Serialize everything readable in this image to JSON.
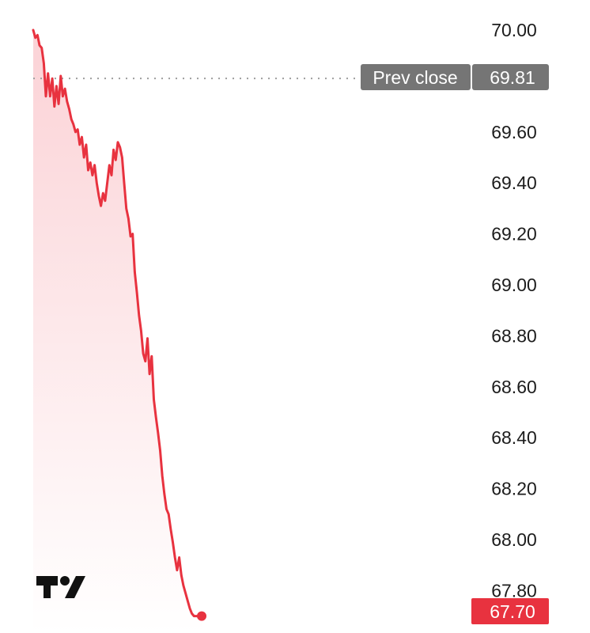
{
  "chart_data": {
    "type": "area",
    "ylim": [
      67.7,
      70.0
    ],
    "y_ticks": [
      "70.00",
      "69.60",
      "69.40",
      "69.20",
      "69.00",
      "68.80",
      "68.60",
      "68.40",
      "68.20",
      "68.00",
      "67.80"
    ],
    "y_tick_values": [
      70.0,
      69.6,
      69.4,
      69.2,
      69.0,
      68.8,
      68.6,
      68.4,
      68.2,
      68.0,
      67.8
    ],
    "x": [
      0,
      1,
      2,
      3,
      4,
      5,
      6,
      7,
      8,
      9,
      10,
      11,
      12,
      13,
      14,
      15,
      16,
      17,
      18,
      19,
      20,
      21,
      22,
      23,
      24,
      25,
      26,
      27,
      28,
      29,
      30,
      31,
      32,
      33,
      34,
      35,
      36,
      37,
      38,
      39,
      40,
      41,
      42,
      43,
      44,
      45,
      46,
      47,
      48,
      49,
      50,
      51,
      52,
      53,
      54,
      55,
      56,
      57,
      58,
      59,
      60,
      61,
      62,
      63,
      64,
      65,
      66,
      67,
      68,
      69,
      70,
      71,
      72,
      73,
      74,
      75,
      76,
      77,
      78,
      79,
      80
    ],
    "series": [
      {
        "values": [
          70.0,
          69.97,
          69.98,
          69.94,
          69.93,
          69.87,
          69.74,
          69.83,
          69.74,
          69.81,
          69.7,
          69.78,
          69.71,
          69.82,
          69.74,
          69.77,
          69.72,
          69.69,
          69.65,
          69.63,
          69.6,
          69.61,
          69.55,
          69.58,
          69.5,
          69.55,
          69.45,
          69.48,
          69.43,
          69.47,
          69.4,
          69.35,
          69.31,
          69.36,
          69.33,
          69.4,
          69.47,
          69.43,
          69.53,
          69.49,
          69.56,
          69.54,
          69.5,
          69.4,
          69.3,
          69.26,
          69.19,
          69.2,
          69.05,
          68.97,
          68.88,
          68.82,
          68.73,
          68.7,
          68.79,
          68.65,
          68.72,
          68.55,
          68.48,
          68.42,
          68.35,
          68.25,
          68.18,
          68.12,
          68.1,
          68.04,
          67.99,
          67.93,
          67.88,
          67.93,
          67.86,
          67.82,
          67.79,
          67.76,
          67.73,
          67.71,
          67.7,
          67.7,
          67.7,
          67.7,
          67.7
        ]
      }
    ],
    "reference_line": {
      "label": "Prev close",
      "value": 69.81,
      "value_label": "69.81"
    },
    "last_price": {
      "value": 67.7,
      "label": "67.70"
    },
    "colors": {
      "line": "#e8323f",
      "fill_top": "#fbd2d6",
      "fill_bottom": "#ffffff",
      "prev_close_badge": "#757575",
      "last_price_badge": "#e8323f",
      "tick_text": "#1c1c1c",
      "dotted_line": "#9e9e9e"
    },
    "grid": false
  },
  "logo": {
    "icon": "tradingview-logo-icon",
    "text": "TV"
  }
}
